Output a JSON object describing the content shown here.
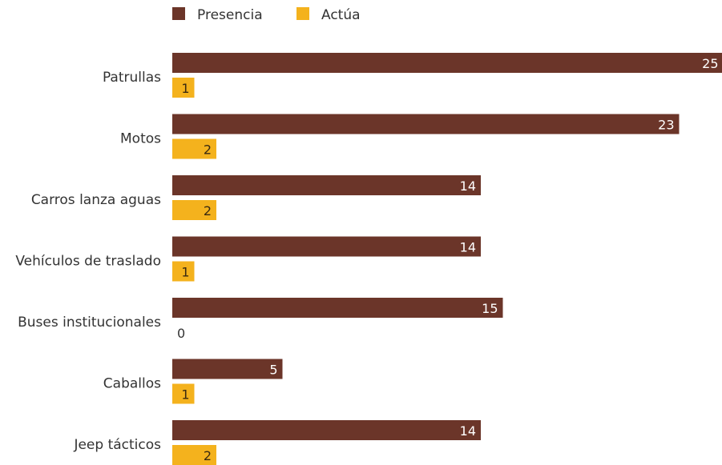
{
  "chart_data": {
    "type": "bar",
    "orientation": "horizontal",
    "categories": [
      "Patrullas",
      "Motos",
      "Carros lanza aguas",
      "Vehículos de traslado",
      "Buses institucionales",
      "Caballos",
      "Jeep tácticos"
    ],
    "series": [
      {
        "name": "Presencia",
        "color": "#6b3529",
        "values": [
          25,
          23,
          14,
          14,
          15,
          5,
          14
        ]
      },
      {
        "name": "Actúa",
        "color": "#f4b21d",
        "values": [
          1,
          2,
          2,
          1,
          0,
          1,
          2
        ]
      }
    ],
    "xlim": [
      0,
      25
    ],
    "grid": false,
    "legend_placement": "top-left"
  }
}
